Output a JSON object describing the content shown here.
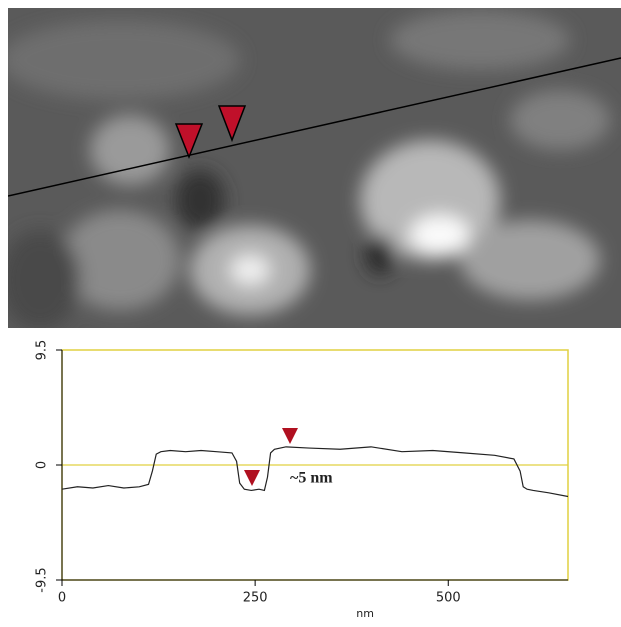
{
  "chart_data": {
    "type": "line",
    "annotation": "~5 nm",
    "xlabel": "nm",
    "x": [
      0,
      20,
      40,
      60,
      80,
      100,
      112,
      117,
      122,
      128,
      140,
      160,
      180,
      200,
      220,
      226,
      230,
      236,
      245,
      255,
      262,
      266,
      270,
      275,
      290,
      320,
      360,
      400,
      440,
      480,
      520,
      560,
      585,
      593,
      597,
      602,
      610,
      630,
      655
    ],
    "series": [
      {
        "color": "#222222",
        "values": [
          -2.0,
          -1.8,
          -1.9,
          -1.7,
          -1.9,
          -1.8,
          -1.6,
          -0.5,
          0.9,
          1.1,
          1.2,
          1.1,
          1.2,
          1.1,
          1.0,
          0.3,
          -1.5,
          -2.0,
          -2.1,
          -2.0,
          -2.1,
          -1.0,
          1.0,
          1.3,
          1.5,
          1.4,
          1.3,
          1.5,
          1.1,
          1.2,
          1.0,
          0.8,
          0.5,
          -0.5,
          -1.8,
          -2.0,
          -2.1,
          -2.3,
          -2.6
        ]
      }
    ],
    "xlim": [
      0,
      655
    ],
    "xticks": [
      0,
      250,
      500
    ],
    "ylim": [
      -9.5,
      9.5
    ],
    "yticks": [
      -9.5,
      0,
      9.5
    ],
    "zero_line": 0,
    "frame_color": "#e0d040"
  }
}
